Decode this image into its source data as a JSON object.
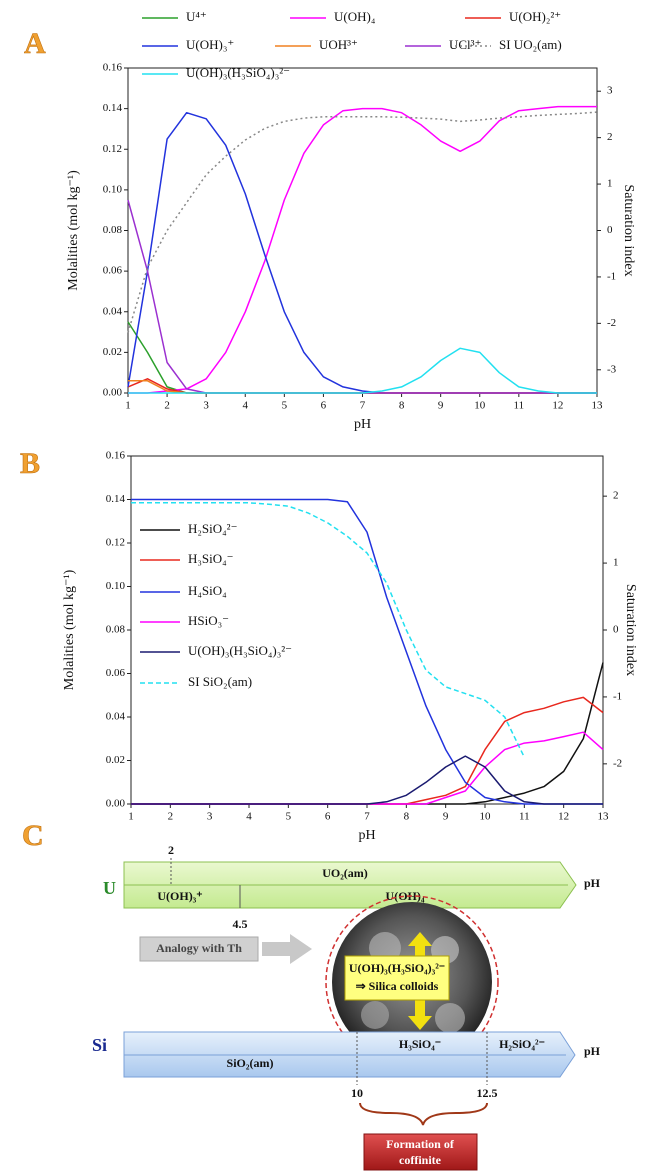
{
  "chart_data": [
    {
      "type": "line",
      "label": "A",
      "x": [
        1,
        1.5,
        2,
        2.5,
        3,
        3.5,
        4,
        4.5,
        5,
        5.5,
        6,
        6.5,
        7,
        7.5,
        8,
        8.5,
        9,
        9.5,
        10,
        10.5,
        11,
        11.5,
        12,
        12.5,
        13
      ],
      "xlabel": "pH",
      "ylabel": "Molalities (mol kg⁻¹)",
      "y2label": "Saturation index",
      "xlim": [
        1,
        13
      ],
      "xticks": [
        1,
        2,
        3,
        4,
        5,
        6,
        7,
        8,
        9,
        10,
        11,
        12,
        13
      ],
      "ylim": [
        0,
        0.16
      ],
      "yticks": [
        {
          "value": 0,
          "label": "0.00"
        },
        {
          "value": 0.02,
          "label": "0.02"
        },
        {
          "value": 0.04,
          "label": "0.04"
        },
        {
          "value": 0.06,
          "label": "0.06"
        },
        {
          "value": 0.08,
          "label": "0.08"
        },
        {
          "value": 0.1,
          "label": "0.10"
        },
        {
          "value": 0.12,
          "label": "0.12"
        },
        {
          "value": 0.14,
          "label": "0.14"
        },
        {
          "value": 0.16,
          "label": "0.16"
        }
      ],
      "y2lim": [
        -3.5,
        3.5
      ],
      "y2ticks": [
        -3,
        -2,
        -1,
        0,
        1,
        2,
        3
      ],
      "series": [
        {
          "name": "U⁴⁺",
          "color": "#2ca02c",
          "values": [
            0.035,
            0.02,
            0.003,
            0,
            0,
            0,
            0,
            0,
            0,
            0,
            0,
            0,
            0,
            0,
            0,
            0,
            0,
            0,
            0,
            0,
            0,
            0,
            0,
            0,
            0
          ]
        },
        {
          "name": "U(OH)₄",
          "color": "#ff00ff",
          "values": [
            0,
            0,
            0.001,
            0.002,
            0.007,
            0.02,
            0.04,
            0.065,
            0.095,
            0.118,
            0.132,
            0.139,
            0.14,
            0.14,
            0.138,
            0.132,
            0.124,
            0.119,
            0.124,
            0.134,
            0.139,
            0.14,
            0.141,
            0.141,
            0.141
          ]
        },
        {
          "name": "U(OH)₂²⁺",
          "color": "#e8281e",
          "values": [
            0.003,
            0.007,
            0.002,
            0,
            0,
            0,
            0,
            0,
            0,
            0,
            0,
            0,
            0,
            0,
            0,
            0,
            0,
            0,
            0,
            0,
            0,
            0,
            0,
            0,
            0
          ]
        },
        {
          "name": "U(OH)₃⁺",
          "color": "#2233dd",
          "values": [
            0.003,
            0.06,
            0.125,
            0.138,
            0.135,
            0.122,
            0.098,
            0.068,
            0.04,
            0.02,
            0.008,
            0.003,
            0.001,
            0,
            0,
            0,
            0,
            0,
            0,
            0,
            0,
            0,
            0,
            0,
            0
          ]
        },
        {
          "name": "UOH³⁺",
          "color": "#f08020",
          "values": [
            0.006,
            0.006,
            0.001,
            0,
            0,
            0,
            0,
            0,
            0,
            0,
            0,
            0,
            0,
            0,
            0,
            0,
            0,
            0,
            0,
            0,
            0,
            0,
            0,
            0,
            0
          ]
        },
        {
          "name": "UCl³⁺",
          "color": "#9b30d0",
          "values": [
            0.095,
            0.06,
            0.015,
            0.002,
            0,
            0,
            0,
            0,
            0,
            0,
            0,
            0,
            0,
            0,
            0,
            0,
            0,
            0,
            0,
            0,
            0,
            0,
            0,
            0,
            0
          ]
        },
        {
          "name": "SI UO₂(am)",
          "color": "#888888",
          "linestyle": "dotted",
          "axis": "y2",
          "values": [
            -2.2,
            -0.8,
            0,
            0.6,
            1.2,
            1.6,
            1.95,
            2.2,
            2.35,
            2.42,
            2.45,
            2.45,
            2.45,
            2.45,
            2.44,
            2.42,
            2.4,
            2.35,
            2.38,
            2.42,
            2.45,
            2.48,
            2.5,
            2.52,
            2.55
          ]
        },
        {
          "name": "U(OH)₃(H₃SiO₄)₃²⁻",
          "color": "#22e0f0",
          "values": [
            0,
            0,
            0,
            0,
            0,
            0,
            0,
            0,
            0,
            0,
            0,
            0,
            0,
            0.001,
            0.003,
            0.008,
            0.016,
            0.022,
            0.02,
            0.01,
            0.003,
            0.001,
            0,
            0,
            0
          ]
        }
      ]
    },
    {
      "type": "line",
      "label": "B",
      "x": [
        1,
        1.5,
        2,
        2.5,
        3,
        3.5,
        4,
        4.5,
        5,
        5.5,
        6,
        6.5,
        7,
        7.5,
        8,
        8.5,
        9,
        9.5,
        10,
        10.5,
        11,
        11.5,
        12,
        12.5,
        13
      ],
      "xlabel": "pH",
      "ylabel": "Molalities (mol kg⁻¹)",
      "y2label": "Saturation index",
      "xlim": [
        1,
        13
      ],
      "xticks": [
        1,
        2,
        3,
        4,
        5,
        6,
        7,
        8,
        9,
        10,
        11,
        12,
        13
      ],
      "ylim": [
        0,
        0.16
      ],
      "yticks": [
        {
          "value": 0,
          "label": "0.00"
        },
        {
          "value": 0.02,
          "label": "0.02"
        },
        {
          "value": 0.04,
          "label": "0.04"
        },
        {
          "value": 0.06,
          "label": "0.06"
        },
        {
          "value": 0.08,
          "label": "0.08"
        },
        {
          "value": 0.1,
          "label": "0.10"
        },
        {
          "value": 0.12,
          "label": "0.12"
        },
        {
          "value": 0.14,
          "label": "0.14"
        },
        {
          "value": 0.16,
          "label": "0.16"
        }
      ],
      "y2lim": [
        -2.6,
        2.6
      ],
      "y2ticks": [
        -2,
        -1,
        0,
        1,
        2
      ],
      "series": [
        {
          "name": "H₂SiO₄²⁻",
          "color": "#111111",
          "values": [
            0,
            0,
            0,
            0,
            0,
            0,
            0,
            0,
            0,
            0,
            0,
            0,
            0,
            0,
            0,
            0,
            0,
            0,
            0.001,
            0.003,
            0.005,
            0.008,
            0.015,
            0.03,
            0.065
          ]
        },
        {
          "name": "H₃SiO₄⁻",
          "color": "#e8281e",
          "values": [
            0,
            0,
            0,
            0,
            0,
            0,
            0,
            0,
            0,
            0,
            0,
            0,
            0,
            0,
            0,
            0.002,
            0.004,
            0.008,
            0.025,
            0.038,
            0.042,
            0.044,
            0.047,
            0.049,
            0.042
          ]
        },
        {
          "name": "H₄SiO₄",
          "color": "#2233dd",
          "values": [
            0.14,
            0.14,
            0.14,
            0.14,
            0.14,
            0.14,
            0.14,
            0.14,
            0.14,
            0.14,
            0.14,
            0.139,
            0.125,
            0.095,
            0.07,
            0.045,
            0.025,
            0.01,
            0.003,
            0.001,
            0,
            0,
            0,
            0,
            0
          ]
        },
        {
          "name": "HSiO₃⁻",
          "color": "#ff00ff",
          "values": [
            0,
            0,
            0,
            0,
            0,
            0,
            0,
            0,
            0,
            0,
            0,
            0,
            0,
            0,
            0,
            0,
            0.003,
            0.006,
            0.017,
            0.025,
            0.028,
            0.029,
            0.031,
            0.033,
            0.025
          ]
        },
        {
          "name": "U(OH)₃(H₃SiO₄)₃²⁻",
          "color": "#1a1a70",
          "values": [
            0,
            0,
            0,
            0,
            0,
            0,
            0,
            0,
            0,
            0,
            0,
            0,
            0,
            0.001,
            0.004,
            0.01,
            0.017,
            0.022,
            0.017,
            0.006,
            0.001,
            0,
            0,
            0,
            0
          ]
        },
        {
          "name": "SI SiO₂(am)",
          "color": "#22e0f0",
          "linestyle": "dashed",
          "axis": "y2",
          "values": [
            1.9,
            1.9,
            1.9,
            1.9,
            1.9,
            1.9,
            1.9,
            1.88,
            1.85,
            1.75,
            1.6,
            1.4,
            1.15,
            0.7,
            0,
            -0.6,
            -0.85,
            -0.95,
            -1.05,
            -1.3,
            -1.9,
            null,
            null,
            null,
            null
          ]
        }
      ]
    }
  ],
  "diagram": {
    "label": "C",
    "u": "U",
    "si": "Si",
    "u_tick": "2",
    "u_top": "UO₂(am)",
    "u_ph": "pH",
    "u_left": "U(OH)₃⁺",
    "u_right": "U(OH)₄",
    "u_split": "4.5",
    "analogy": "Analogy with Th",
    "complex": "U(OH)₃(H₃SiO₄)₃²⁻",
    "colloids": "⇒ Silica colloids",
    "si_mid": "H₃SiO₄⁻",
    "si_right": "H₂SiO₄²⁻",
    "si_ph": "pH",
    "si_bottom": "SiO₂(am)",
    "si_a": "10",
    "si_b": "12.5",
    "coffinite_1": "Formation of",
    "coffinite_2": "coffinite"
  }
}
